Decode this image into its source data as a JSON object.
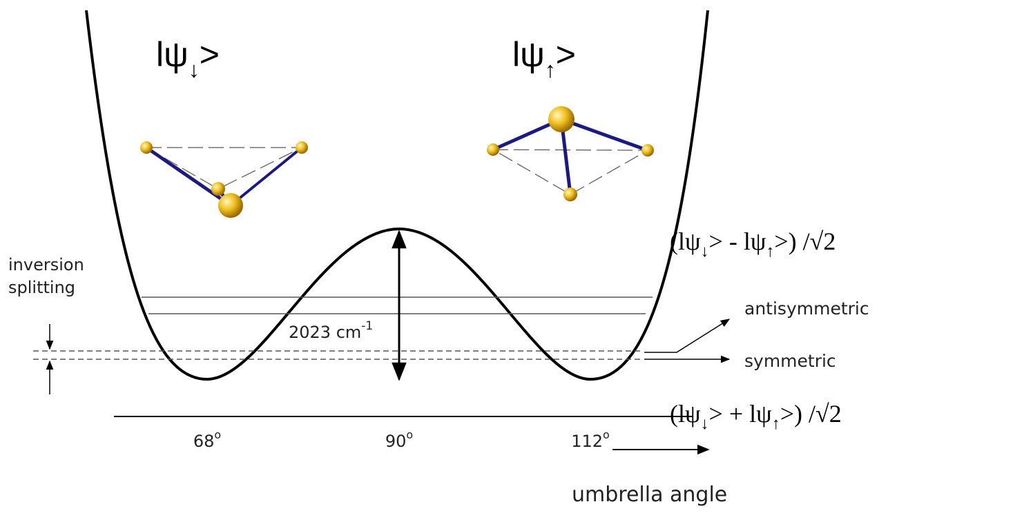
{
  "states": [
    {
      "prefix": "lψ",
      "sub": "↓",
      "suffix": ">"
    },
    {
      "prefix": "lψ",
      "sub": "↑",
      "suffix": ">"
    }
  ],
  "superpositions": [
    {
      "parts": [
        "(lψ",
        "↓",
        "> - lψ",
        "↑",
        ">) /√2"
      ]
    },
    {
      "parts": [
        "(lψ",
        "↓",
        "> + lψ",
        "↑",
        ">) /√2"
      ]
    }
  ],
  "inversion_label": [
    "inversion",
    "splitting"
  ],
  "barrier": {
    "text": "2023 cm",
    "sup": "-1"
  },
  "levels": [
    "antisymmetric",
    "symmetric"
  ],
  "axis": {
    "ticks": [
      {
        "text": "68",
        "sup": "o"
      },
      {
        "text": "90",
        "sup": "o"
      },
      {
        "text": "112",
        "sup": "o"
      }
    ],
    "label": "umbrella angle"
  }
}
